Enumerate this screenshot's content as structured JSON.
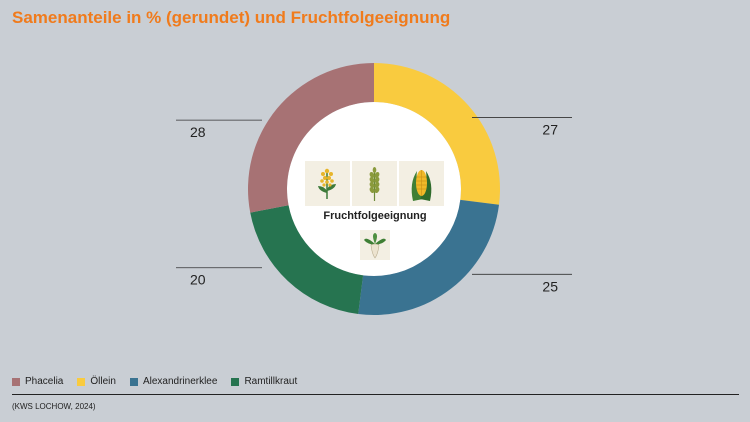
{
  "title": "Samenanteile in % (gerundet) und Fruchtfolgeeignung",
  "center_label": "Fruchtfolgeeignung",
  "source": "(KWS LOCHOW, 2024)",
  "icons": [
    "rapeseed-icon",
    "cereal-icon",
    "corn-icon",
    "sugar-beet-icon"
  ],
  "chart_data": {
    "type": "pie",
    "variant": "donut",
    "title": "Samenanteile in % (gerundet) und Fruchtfolgeeignung",
    "categories": [
      "Öllein",
      "Alexandrinerklee",
      "Ramtillkraut",
      "Phacelia"
    ],
    "values": [
      27,
      25,
      20,
      28
    ],
    "colors": [
      "#f9cb3f",
      "#3a7391",
      "#267450",
      "#a77274"
    ],
    "legend": [
      {
        "label": "Phacelia",
        "color": "#a77274"
      },
      {
        "label": "Öllein",
        "color": "#f9cb3f"
      },
      {
        "label": "Alexandrinerklee",
        "color": "#3a7391"
      },
      {
        "label": "Ramtillkraut",
        "color": "#267450"
      }
    ],
    "legend_position": "bottom-left",
    "labels": [
      "27",
      "25",
      "20",
      "28"
    ]
  }
}
